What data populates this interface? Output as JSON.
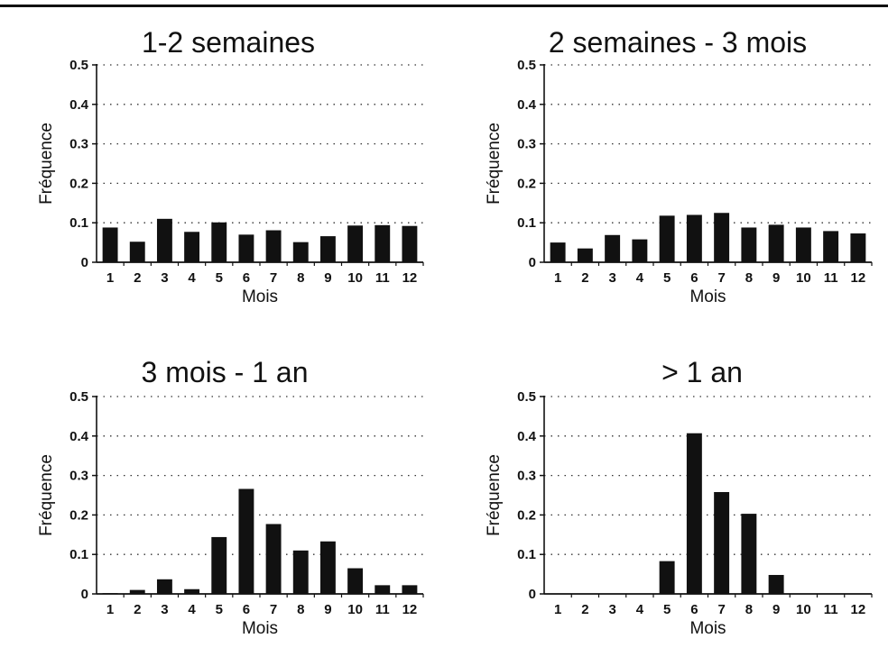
{
  "chart_data": [
    {
      "type": "bar",
      "title": "1-2 semaines",
      "xlabel": "Mois",
      "ylabel": "Fréquence",
      "categories": [
        "1",
        "2",
        "3",
        "4",
        "5",
        "6",
        "7",
        "8",
        "9",
        "10",
        "11",
        "12"
      ],
      "values": [
        0.088,
        0.052,
        0.11,
        0.077,
        0.101,
        0.07,
        0.081,
        0.051,
        0.066,
        0.093,
        0.094,
        0.092
      ],
      "ylim": [
        0,
        0.5
      ],
      "yticks": [
        "0",
        "0.1",
        "0.2",
        "0.3",
        "0.4",
        "0.5"
      ],
      "grid": "horizontal dotted"
    },
    {
      "type": "bar",
      "title": "2 semaines - 3 mois",
      "xlabel": "Mois",
      "ylabel": "Fréquence",
      "categories": [
        "1",
        "2",
        "3",
        "4",
        "5",
        "6",
        "7",
        "8",
        "9",
        "10",
        "11",
        "12"
      ],
      "values": [
        0.05,
        0.035,
        0.069,
        0.058,
        0.118,
        0.12,
        0.125,
        0.088,
        0.095,
        0.088,
        0.079,
        0.073
      ],
      "ylim": [
        0,
        0.5
      ],
      "yticks": [
        "0",
        "0.1",
        "0.2",
        "0.3",
        "0.4",
        "0.5"
      ],
      "grid": "horizontal dotted"
    },
    {
      "type": "bar",
      "title": "3 mois - 1 an",
      "xlabel": "Mois",
      "ylabel": "Fréquence",
      "categories": [
        "1",
        "2",
        "3",
        "4",
        "5",
        "6",
        "7",
        "8",
        "9",
        "10",
        "11",
        "12"
      ],
      "values": [
        0.002,
        0.01,
        0.037,
        0.012,
        0.144,
        0.266,
        0.177,
        0.11,
        0.133,
        0.065,
        0.022,
        0.022
      ],
      "ylim": [
        0,
        0.5
      ],
      "yticks": [
        "0",
        "0.1",
        "0.2",
        "0.3",
        "0.4",
        "0.5"
      ],
      "grid": "horizontal dotted"
    },
    {
      "type": "bar",
      "title": "> 1 an",
      "xlabel": "Mois",
      "ylabel": "Fréquence",
      "categories": [
        "1",
        "2",
        "3",
        "4",
        "5",
        "6",
        "7",
        "8",
        "9",
        "10",
        "11",
        "12"
      ],
      "values": [
        0,
        0,
        0,
        0,
        0.083,
        0.407,
        0.258,
        0.203,
        0.048,
        0,
        0,
        0
      ],
      "ylim": [
        0,
        0.5
      ],
      "yticks": [
        "0",
        "0.1",
        "0.2",
        "0.3",
        "0.4",
        "0.5"
      ],
      "grid": "horizontal dotted"
    }
  ],
  "colors": {
    "bar": "#111111",
    "axis": "#111111",
    "grid": "#333333",
    "background": "#ffffff"
  }
}
